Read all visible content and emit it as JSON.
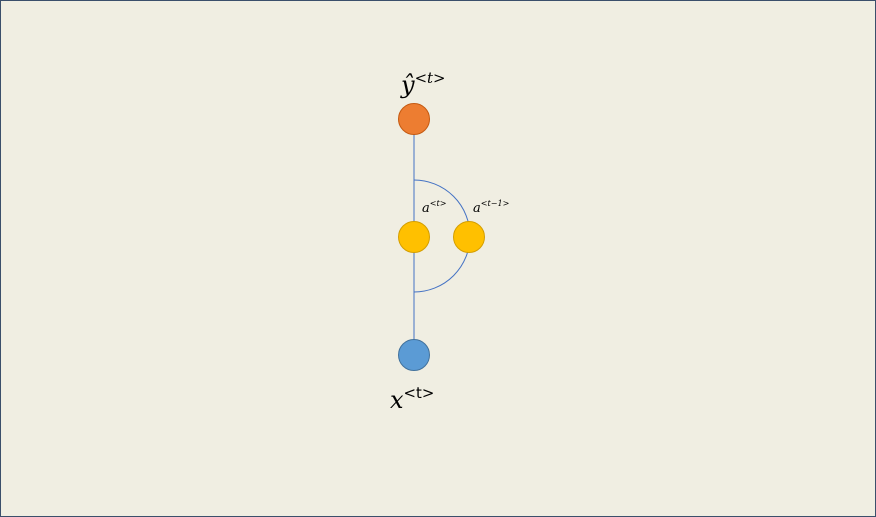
{
  "diagram": {
    "output_label": {
      "base": "ŷ",
      "sup": "<t>"
    },
    "input_label": {
      "base": "x",
      "sup": "<t>"
    },
    "hidden_label": {
      "base": "a",
      "sup": "<t>"
    },
    "prev_hidden_label": {
      "base": "a",
      "sup": "<t−1>"
    },
    "colors": {
      "output_node": "#ed7d31",
      "hidden_node": "#ffc000",
      "input_node": "#5b9bd5",
      "edge": "#4472c4",
      "background": "#f0eee2"
    },
    "icons": {
      "output_node": "circle",
      "hidden_node": "circle",
      "prev_hidden_node": "circle",
      "input_node": "circle"
    }
  }
}
